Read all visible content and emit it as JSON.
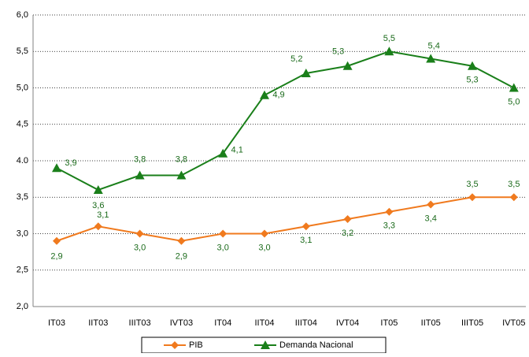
{
  "chart_data": {
    "type": "line",
    "categories": [
      "IT03",
      "IIT03",
      "IIIT03",
      "IVT03",
      "IT04",
      "IIT04",
      "IIIT04",
      "IVT04",
      "IT05",
      "IIT05",
      "IIIT05",
      "IVT05"
    ],
    "series": [
      {
        "name": "PIB",
        "color": "#f07a1e",
        "marker": "diamond",
        "values": [
          2.9,
          3.1,
          3.0,
          2.9,
          3.0,
          3.0,
          3.1,
          3.2,
          3.3,
          3.4,
          3.5,
          3.5
        ],
        "value_labels": [
          "2,9",
          "3,1",
          "3,0",
          "2,9",
          "3,0",
          "3,0",
          "3,1",
          "3,2",
          "3,3",
          "3,4",
          "3,5",
          "3,5"
        ]
      },
      {
        "name": "Demanda Nacional",
        "color": "#1a7f1a",
        "marker": "triangle",
        "values": [
          3.9,
          3.6,
          3.8,
          3.8,
          4.1,
          4.9,
          5.2,
          5.3,
          5.5,
          5.4,
          5.3,
          5.0
        ],
        "value_labels": [
          "3,9",
          "3,6",
          "3,8",
          "3,8",
          "4,1",
          "4,9",
          "5,2",
          "5,3",
          "5,5",
          "5,4",
          "5,3",
          "5,0"
        ]
      }
    ],
    "ylim": [
      2.0,
      6.0
    ],
    "yticks": [
      {
        "value": 2.0,
        "label": "2,0"
      },
      {
        "value": 2.5,
        "label": "2,5"
      },
      {
        "value": 3.0,
        "label": "3,0"
      },
      {
        "value": 3.5,
        "label": "3,5"
      },
      {
        "value": 4.0,
        "label": "4.0"
      },
      {
        "value": 4.5,
        "label": "4,5"
      },
      {
        "value": 5.0,
        "label": "5,0"
      },
      {
        "value": 5.5,
        "label": "5,5"
      },
      {
        "value": 6.0,
        "label": "6,0"
      }
    ],
    "grid": true,
    "legend": "bottom"
  }
}
